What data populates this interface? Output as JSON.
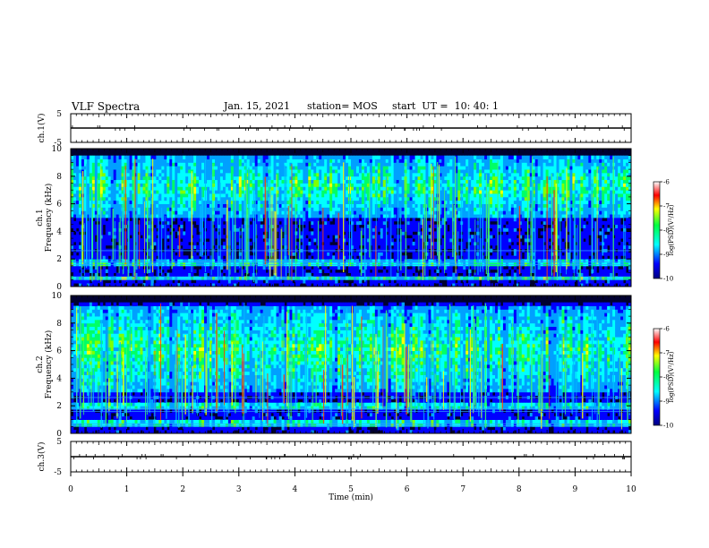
{
  "header": {
    "title": "VLF Spectra",
    "date": "Jan. 15, 2021",
    "station": "station= MOS",
    "start": "start  UT =  10: 40: 1"
  },
  "colors": {
    "colormap": [
      "#000080",
      "#0000ff",
      "#00a0ff",
      "#00ffff",
      "#00ff66",
      "#80ff00",
      "#ffff00",
      "#ff8000",
      "#ff0000",
      "#ffffff"
    ],
    "axis": "#000000"
  },
  "chart_data": [
    {
      "type": "line",
      "ylabel": "ch.1(V)",
      "ylim": [
        -5,
        5
      ],
      "yticks": [
        "5",
        "-5"
      ],
      "series": [
        {
          "values": [
            0,
            0
          ]
        }
      ],
      "x": [
        0,
        10
      ]
    },
    {
      "type": "heatmap",
      "ylabel": "ch.1 Frequency (kHz)",
      "ylim": [
        0,
        10
      ],
      "yticks": [
        "0",
        "2",
        "4",
        "6",
        "8",
        "10"
      ],
      "colorbar": {
        "label": "log(PSD)(V²/Hz)",
        "range": [
          -10,
          -6
        ],
        "ticks": [
          "-6",
          "-7",
          "-8",
          "-9",
          "-10"
        ]
      },
      "bands_khz": [
        [
          0.4,
          0.8
        ],
        [
          1.5,
          1.9
        ],
        [
          5.0,
          9.5
        ]
      ],
      "peak_log_psd": -6
    },
    {
      "type": "heatmap",
      "ylabel": "ch.2 Frequency (kHz)",
      "ylim": [
        0,
        10
      ],
      "yticks": [
        "0",
        "2",
        "4",
        "6",
        "8",
        "10"
      ],
      "colorbar": {
        "label": "log(PSD)(V²/Hz)",
        "range": [
          -10,
          -6
        ],
        "ticks": [
          "-6",
          "-7",
          "-8",
          "-9",
          "-10"
        ]
      },
      "bands_khz": [
        [
          0.5,
          1.0
        ],
        [
          1.8,
          2.2
        ],
        [
          3.0,
          9.2
        ]
      ],
      "peak_log_psd": -6
    },
    {
      "type": "line",
      "ylabel": "ch.3(V)",
      "ylim": [
        -5,
        5
      ],
      "yticks": [
        "5",
        "-5"
      ],
      "series": [
        {
          "values": [
            0,
            0
          ]
        }
      ],
      "x": [
        0,
        10
      ]
    }
  ],
  "xaxis": {
    "label": "Time  (min)",
    "ticks": [
      "0",
      "1",
      "2",
      "3",
      "4",
      "5",
      "6",
      "7",
      "8",
      "9",
      "10"
    ],
    "xlim": [
      0,
      10
    ]
  }
}
